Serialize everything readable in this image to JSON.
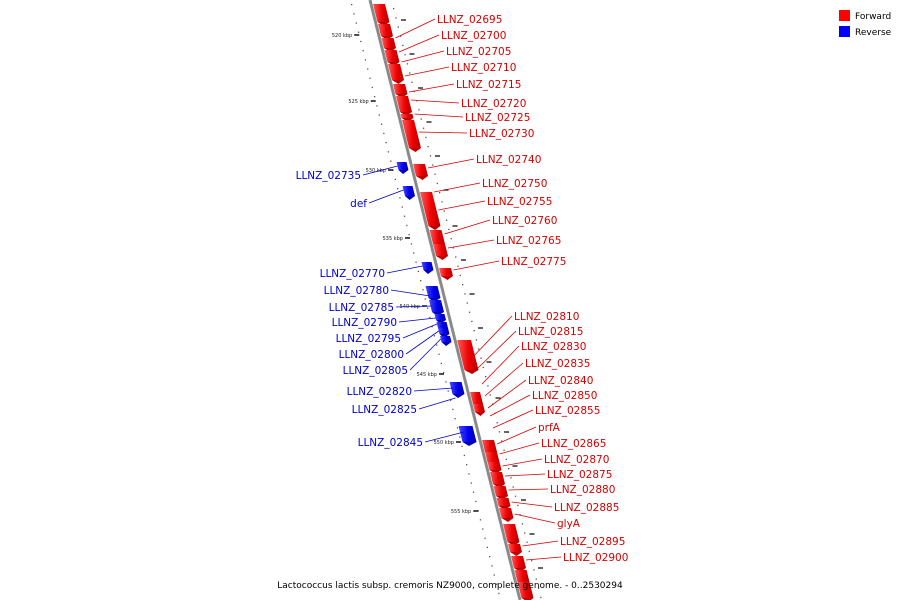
{
  "caption": "Lactococcus lactis subsp. cremoris NZ9000, complete genome. - 0..2530294",
  "legend": [
    {
      "label": "Forward",
      "color": "#ff0000"
    },
    {
      "label": "Reverse",
      "color": "#0000ff"
    }
  ],
  "scale_labels": [
    "520 kbp",
    "525 kbp",
    "530 kbp",
    "535 kbp",
    "540 kbp",
    "545 kbp",
    "550 kbp",
    "555 kbp"
  ],
  "forward_genes": [
    "LLNZ_02695",
    "LLNZ_02700",
    "LLNZ_02705",
    "LLNZ_02710",
    "LLNZ_02715",
    "LLNZ_02720",
    "LLNZ_02725",
    "LLNZ_02730",
    "LLNZ_02740",
    "LLNZ_02750",
    "LLNZ_02755",
    "LLNZ_02760",
    "LLNZ_02765",
    "LLNZ_02775",
    "LLNZ_02810",
    "LLNZ_02815",
    "LLNZ_02830",
    "LLNZ_02835",
    "LLNZ_02840",
    "LLNZ_02850",
    "LLNZ_02855",
    "prfA",
    "LLNZ_02865",
    "LLNZ_02870",
    "LLNZ_02875",
    "LLNZ_02880",
    "LLNZ_02885",
    "glyA",
    "LLNZ_02895",
    "LLNZ_02900"
  ],
  "reverse_genes": [
    "LLNZ_02735",
    "def",
    "LLNZ_02770",
    "LLNZ_02780",
    "LLNZ_02785",
    "LLNZ_02790",
    "LLNZ_02795",
    "LLNZ_02800",
    "LLNZ_02805",
    "LLNZ_02820",
    "LLNZ_02825",
    "LLNZ_02845"
  ],
  "colors": {
    "forward": "#ff0000",
    "reverse": "#0000ff",
    "backbone": "#888888"
  }
}
